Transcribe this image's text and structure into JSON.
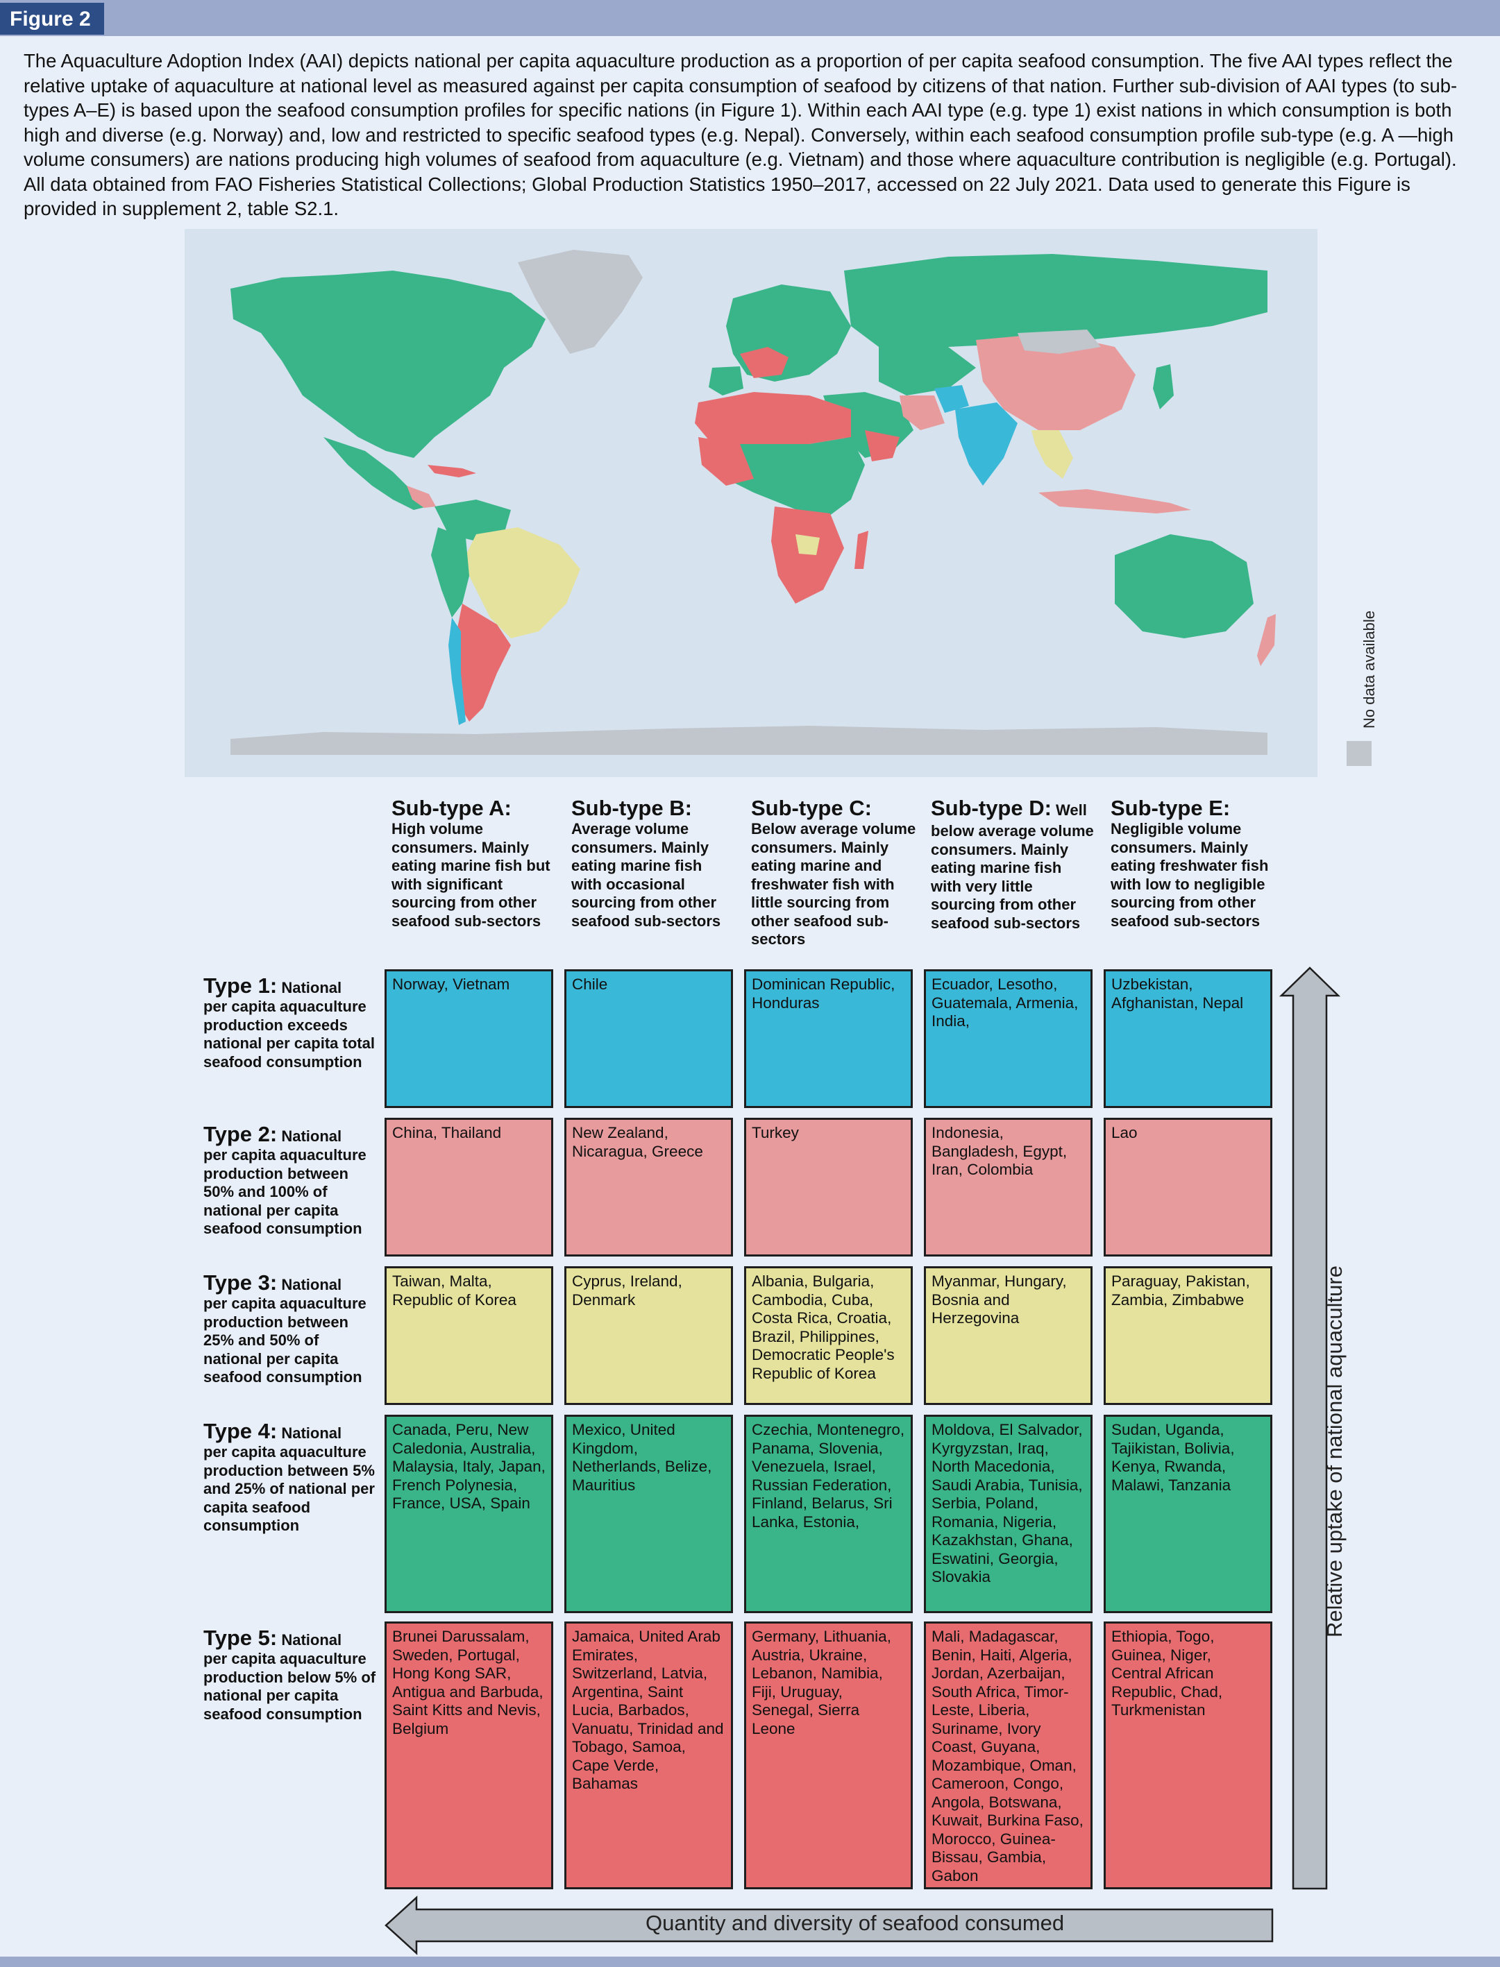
{
  "figure_label": "Figure 2",
  "caption": "The Aquaculture Adoption Index (AAI) depicts national per capita aquaculture production as a proportion of per capita seafood consumption. The five AAI types reflect the relative uptake of aquaculture at national level as measured against per capita consumption of seafood by citizens of that nation. Further sub-division of AAI types (to sub-types A–E) is based upon the seafood consumption profiles for specific nations (in Figure 1). Within each AAI type (e.g. type 1) exist nations in which consumption is both high and diverse (e.g. Norway) and, low and restricted to specific seafood types (e.g. Nepal). Conversely, within each seafood consumption profile sub-type (e.g. A —high volume consumers) are nations producing high volumes of seafood from aquaculture (e.g. Vietnam) and those where aquaculture contribution is negligible (e.g. Portugal). All data obtained from FAO Fisheries Statistical Collections; Global Production Statistics 1950–2017, accessed on 22 July 2021. Data used to generate this Figure is provided in supplement 2, table S2.1.",
  "map": {
    "legend_label": "No data available",
    "colors": {
      "type1": "#3ab8d8",
      "type2": "#e79b9d",
      "type3": "#e4e29d",
      "type4": "#3ab58a",
      "type5": "#e76c70",
      "no_data": "#c1c5cc",
      "ocean": "#d6e2ee"
    }
  },
  "subtypes": [
    {
      "title": "Sub-type A:",
      "title_extra": "",
      "desc": "High volume consumers. Mainly eating marine fish but with significant sourcing from other seafood sub-sectors"
    },
    {
      "title": "Sub-type B:",
      "title_extra": "",
      "desc": "Average volume consumers. Mainly eating marine fish with occasional sourcing from other seafood sub-sectors"
    },
    {
      "title": "Sub-type C:",
      "title_extra": "",
      "desc": "Below average volume consumers. Mainly eating marine and freshwater fish with little sourcing from other seafood sub-sectors"
    },
    {
      "title": "Sub-type D:",
      "title_extra": " Well",
      "desc": "below average volume consumers. Mainly eating marine fish with very little sourcing from other seafood sub-sectors"
    },
    {
      "title": "Sub-type E:",
      "title_extra": "",
      "desc": "Negligible volume consumers. Mainly eating freshwater fish with low to negligible sourcing from other seafood sub-sectors"
    }
  ],
  "types": [
    {
      "title": "Type 1:",
      "title_extra": " National",
      "desc": "per capita aquaculture production exceeds national per capita total seafood consumption"
    },
    {
      "title": "Type 2:",
      "title_extra": " National",
      "desc": "per capita aquaculture production between 50% and 100% of national per capita seafood consumption"
    },
    {
      "title": "Type 3:",
      "title_extra": " National",
      "desc": "per capita aquaculture production between 25% and 50% of national per capita seafood consumption"
    },
    {
      "title": "Type 4:",
      "title_extra": " National",
      "desc": "per capita aquaculture production between 5% and 25% of national per capita seafood consumption"
    },
    {
      "title": "Type 5:",
      "title_extra": " National",
      "desc": "per capita aquaculture production below 5% of national per capita seafood consumption"
    }
  ],
  "grid": [
    [
      "Norway, Vietnam",
      "Chile",
      "Dominican Republic, Honduras",
      "Ecuador, Lesotho, Guatemala, Armenia, India,",
      "Uzbekistan, Afghanistan, Nepal"
    ],
    [
      "China, Thailand",
      "New Zealand, Nicaragua, Greece",
      "Turkey",
      "Indonesia, Bangladesh, Egypt, Iran, Colombia",
      "Lao"
    ],
    [
      "Taiwan, Malta, Republic of Korea",
      "Cyprus, Ireland, Denmark",
      "Albania, Bulgaria, Cambodia, Cuba, Costa Rica, Croatia, Brazil, Philippines, Democratic People's Republic of Korea",
      "Myanmar, Hungary, Bosnia and Herzegovina",
      "Paraguay, Pakistan, Zambia, Zimbabwe"
    ],
    [
      "Canada, Peru, New Caledonia, Australia, Malaysia, Italy, Japan, French Polynesia, France, USA, Spain",
      "Mexico, United Kingdom, Netherlands, Belize, Mauritius",
      "Czechia, Montenegro, Panama, Slovenia, Venezuela, Israel, Russian Federation, Finland, Belarus, Sri Lanka, Estonia,",
      "Moldova, El Salvador, Kyrgyzstan, Iraq, North Macedonia, Saudi Arabia, Tunisia, Serbia, Poland, Romania, Nigeria, Kazakhstan, Ghana, Eswatini, Georgia, Slovakia",
      "Sudan, Uganda, Tajikistan, Bolivia, Kenya, Rwanda, Malawi, Tanzania"
    ],
    [
      "Brunei Darussalam, Sweden, Portugal, Hong Kong SAR, Antigua and Barbuda, Saint Kitts and Nevis, Belgium",
      "Jamaica, United Arab Emirates, Switzerland, Latvia, Argentina, Saint Lucia, Barbados, Vanuatu, Trinidad and Tobago, Samoa, Cape Verde, Bahamas",
      "Germany, Lithuania, Austria, Ukraine, Lebanon, Namibia, Fiji, Uruguay, Senegal, Sierra Leone",
      "Mali, Madagascar, Benin, Haiti, Algeria, Jordan, Azerbaijan, South Africa, Timor-Leste, Liberia, Suriname, Ivory Coast, Guyana, Mozambique, Oman, Cameroon, Congo, Angola, Botswana, Kuwait, Burkina Faso, Morocco, Guinea-Bissau, Gambia, Gabon",
      "Ethiopia, Togo, Guinea, Niger, Central African Republic, Chad, Turkmenistan"
    ]
  ],
  "axes": {
    "y_label": "Relative uptake of national aquaculture",
    "x_label": "Quantity and diversity of seafood consumed"
  }
}
